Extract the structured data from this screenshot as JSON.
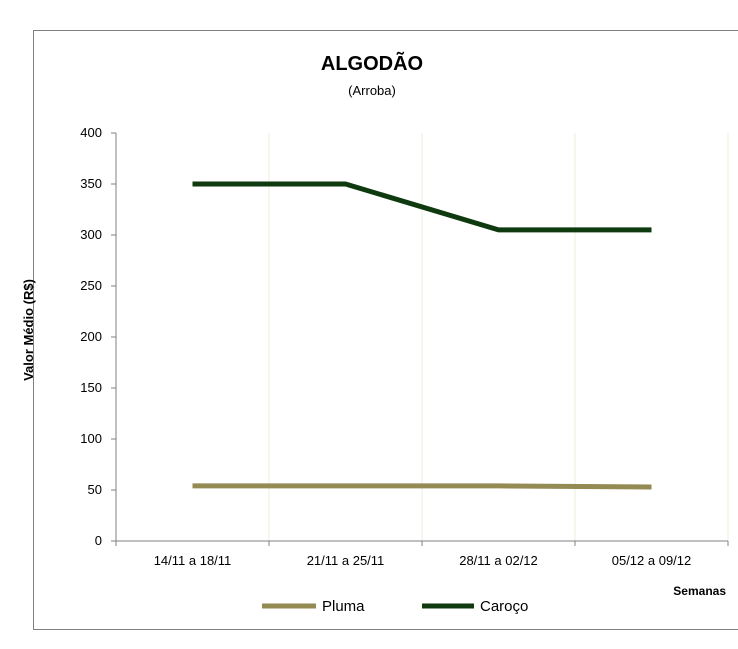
{
  "chart_data": {
    "type": "line",
    "title": "ALGODÃO",
    "subtitle": "(Arroba)",
    "ylabel": "Valor Médio (R$)",
    "xlabel": "Semanas",
    "categories": [
      "14/11 a 18/11",
      "21/11 a 25/11",
      "28/11 a 02/12",
      "05/12 a 09/12"
    ],
    "ylim": [
      0,
      400
    ],
    "yticks": [
      0,
      50,
      100,
      150,
      200,
      250,
      300,
      350,
      400
    ],
    "grid": "vertical",
    "legend_position": "bottom",
    "series": [
      {
        "name": "Pluma",
        "color": "#948a54",
        "values": [
          54,
          54,
          54,
          53
        ]
      },
      {
        "name": "Caroço",
        "color": "#0f3a0f",
        "values": [
          350,
          350,
          305,
          305
        ]
      }
    ]
  }
}
